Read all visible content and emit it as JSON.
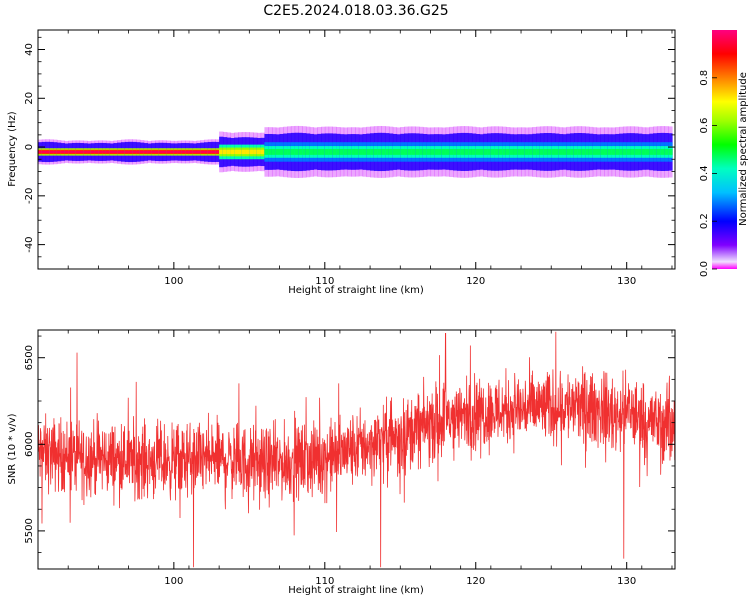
{
  "figure": {
    "title": "C2E5.2024.018.03.36.G25"
  },
  "chart_data": [
    {
      "type": "heatmap",
      "xlabel": "Height of straight line (km)",
      "ylabel": "Frequency (Hz)",
      "xlim": [
        91,
        133.2
      ],
      "ylim": [
        -50,
        48
      ],
      "x_ticks": [
        100,
        110,
        120,
        130
      ],
      "y_ticks": [
        -40,
        -20,
        0,
        20,
        40
      ],
      "y_tick_labels": [
        "-40",
        "-20",
        "0",
        "20",
        "40"
      ],
      "colorbar": {
        "label": "Normalized spectral amplitude",
        "range": [
          0,
          1
        ],
        "ticks": [
          0.0,
          0.2,
          0.4,
          0.6,
          0.8
        ],
        "tick_labels": [
          "0.0",
          "0.2",
          "0.4",
          "0.6",
          "0.8"
        ],
        "colormap": "gist_rainbow_r",
        "colors": [
          "#ff00ff",
          "#0000ff",
          "#00ffff",
          "#00ff00",
          "#ffff00",
          "#ff8000",
          "#ff0000",
          "#ff0080"
        ]
      },
      "band": {
        "center_hz": -2,
        "segments": [
          {
            "x_from": 91,
            "x_to": 103,
            "peak_amplitude": 0.95,
            "halfwidth_hz": 1.5
          },
          {
            "x_from": 103,
            "x_to": 106,
            "peak_amplitude": 0.6,
            "halfwidth_hz": 3
          },
          {
            "x_from": 106,
            "x_to": 133,
            "peak_amplitude": 0.38,
            "halfwidth_hz": 4
          }
        ]
      }
    },
    {
      "type": "line",
      "xlabel": "Height of straight line (km)",
      "ylabel": "SNR (10 * v/v)",
      "xlim": [
        91,
        133.2
      ],
      "ylim": [
        5280,
        6660
      ],
      "x_ticks": [
        100,
        110,
        120,
        130
      ],
      "y_ticks": [
        5500,
        6000,
        6500
      ],
      "color": "#f03030",
      "series": [
        {
          "trend": {
            "x": [
              91,
              95,
              100,
              103,
              106,
              110,
              113,
              115,
              118,
              122,
              126,
              130,
              133
            ],
            "y": [
              5950,
              5920,
              5900,
              5920,
              5880,
              5920,
              6000,
              6050,
              6150,
              6200,
              6220,
              6180,
              6100
            ]
          },
          "noise_amplitude": 130,
          "spikes": [
            {
              "x": 101.3,
              "y": 5290
            },
            {
              "x": 113.7,
              "y": 5290
            },
            {
              "x": 125.3,
              "y": 6650
            },
            {
              "x": 129.8,
              "y": 5340
            },
            {
              "x": 118.0,
              "y": 6640
            }
          ]
        }
      ]
    }
  ]
}
